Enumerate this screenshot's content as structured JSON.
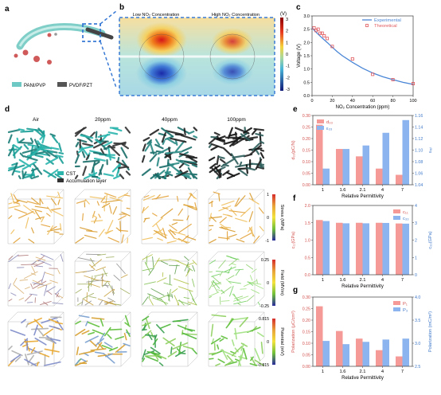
{
  "panels": {
    "a": {
      "label": "a",
      "legend": [
        {
          "name": "PANI/PVP",
          "color": "#6ec9c4"
        },
        {
          "name": "PVDF/PZT",
          "color": "#555555"
        }
      ]
    },
    "b": {
      "label": "b",
      "titles": [
        "Low NO₂ Concentration",
        "High NO₂ Concentration"
      ],
      "colorbar_unit": "(V)",
      "colorbar_ticks": [
        "3",
        "2",
        "1",
        "0",
        "-1",
        "-2",
        "-3"
      ]
    },
    "c": {
      "label": "c"
    },
    "d": {
      "label": "d",
      "columns": [
        "Air",
        "20ppm",
        "40ppm",
        "100ppm"
      ],
      "legend": [
        {
          "name": "CST",
          "color": "#2bb5ad"
        },
        {
          "name": "Accumulation layer",
          "color": "#333333"
        }
      ],
      "row_colorbars": [
        {
          "title": "Stress (MPa)",
          "ticks": [
            "1",
            "0",
            "-1"
          ],
          "colors": [
            "#d62d2d",
            "#e8a33a",
            "#f2e23b",
            "#6fbf3a",
            "#2a2a9a"
          ]
        },
        {
          "title": "Field (MV/m)",
          "ticks": [
            "0.25",
            "0",
            "-0.25"
          ],
          "colors": [
            "#d62d2d",
            "#e8a33a",
            "#f2e23b",
            "#6fbf3a",
            "#2a2a9a"
          ]
        },
        {
          "title": "Potential (mV)",
          "ticks": [
            "0.815",
            "0",
            "-0.815"
          ],
          "colors": [
            "#d62d2d",
            "#e8a33a",
            "#f2e23b",
            "#6fbf3a",
            "#2a2a9a"
          ]
        }
      ]
    },
    "e": {
      "label": "e"
    },
    "f": {
      "label": "f"
    },
    "g": {
      "label": "g"
    }
  },
  "colors": {
    "salmon": "#f59a96",
    "blue": "#8cb4ee",
    "curve": "#4a86d6",
    "marker": "#e0565b",
    "frame": "#3a3a3a"
  },
  "chart_data": [
    {
      "id": "c",
      "type": "line",
      "xlabel": "NO₂ Concentration (ppm)",
      "ylabel": "Voltage (V)",
      "xlim": [
        0,
        100
      ],
      "ylim": [
        0,
        3.0
      ],
      "xticks": [
        0,
        20,
        40,
        60,
        80,
        100
      ],
      "yticks": [
        0,
        0.5,
        1.0,
        1.5,
        2.0,
        2.5,
        3.0
      ],
      "legend": "top-right",
      "series": [
        {
          "name": "Experimental",
          "kind": "line",
          "x": [
            0,
            5,
            10,
            15,
            20,
            25,
            30,
            40,
            50,
            60,
            70,
            80,
            90,
            100
          ],
          "values": [
            2.55,
            2.35,
            2.17,
            2.0,
            1.82,
            1.65,
            1.5,
            1.25,
            1.03,
            0.85,
            0.71,
            0.6,
            0.5,
            0.42
          ]
        },
        {
          "name": "Theoretical",
          "kind": "scatter",
          "x": [
            2,
            4,
            6,
            8,
            10,
            12,
            15,
            20,
            40,
            60,
            80,
            100
          ],
          "values": [
            2.55,
            2.45,
            2.5,
            2.35,
            2.35,
            2.25,
            2.15,
            1.85,
            1.38,
            0.8,
            0.6,
            0.45
          ]
        }
      ]
    },
    {
      "id": "e",
      "type": "bar",
      "categories": [
        "1",
        "1.6",
        "2.1",
        "4",
        "7"
      ],
      "xlabel": "Relative Permittivity",
      "ylabel": "d₃₃(pC/N)",
      "ylim": [
        0,
        0.3
      ],
      "yticks": [
        0,
        0.05,
        0.1,
        0.15,
        0.2,
        0.25,
        0.3
      ],
      "ylabel_right": "εᵣₑₗ",
      "ylim_right": [
        1.04,
        1.16
      ],
      "yticks_right": [
        1.04,
        1.06,
        1.08,
        1.1,
        1.12,
        1.14,
        1.16
      ],
      "legend": "top-left",
      "series": [
        {
          "name": "d₃₃",
          "axis": "left",
          "values": [
            0.26,
            0.155,
            0.123,
            0.07,
            0.043
          ]
        },
        {
          "name": "ε₃₃",
          "axis": "right",
          "values": [
            1.068,
            1.102,
            1.108,
            1.13,
            1.152
          ]
        }
      ]
    },
    {
      "id": "f",
      "type": "bar",
      "categories": [
        "1",
        "1.6",
        "2.1",
        "4",
        "7"
      ],
      "xlabel": "Relative Permittivity",
      "ylabel": "c₁₁(GPa)",
      "ylim": [
        0,
        2.0
      ],
      "yticks": [
        0,
        0.5,
        1.0,
        1.5,
        2.0
      ],
      "ylabel_right": "c₃₃(GPa)",
      "ylim_right": [
        0,
        4
      ],
      "yticks_right": [
        0,
        1,
        2,
        3,
        4
      ],
      "legend": "top-right",
      "series": [
        {
          "name": "c₁₁",
          "axis": "left",
          "values": [
            1.58,
            1.5,
            1.5,
            1.5,
            1.48
          ]
        },
        {
          "name": "c₃₃",
          "axis": "right",
          "values": [
            3.1,
            2.97,
            2.97,
            2.99,
            2.95
          ]
        }
      ]
    },
    {
      "id": "g",
      "type": "bar",
      "categories": [
        "1",
        "1.6",
        "2.1",
        "4",
        "7"
      ],
      "xlabel": "Relative Permittivity",
      "ylabel": "Polarization (μC/cm²)",
      "ylim": [
        0,
        0.3
      ],
      "yticks": [
        0,
        0.05,
        0.1,
        0.15,
        0.2,
        0.25,
        0.3
      ],
      "ylabel_right": "Polarization (mC/m²)",
      "ylim_right": [
        2.5,
        4.0
      ],
      "yticks_right": [
        2.5,
        3.0,
        3.5,
        4.0
      ],
      "legend": "top-right",
      "series": [
        {
          "name": "P₁",
          "axis": "left",
          "values": [
            0.26,
            0.153,
            0.12,
            0.07,
            0.043
          ]
        },
        {
          "name": "P₃",
          "axis": "right",
          "values": [
            3.05,
            2.98,
            3.03,
            3.08,
            3.1
          ]
        }
      ]
    }
  ]
}
